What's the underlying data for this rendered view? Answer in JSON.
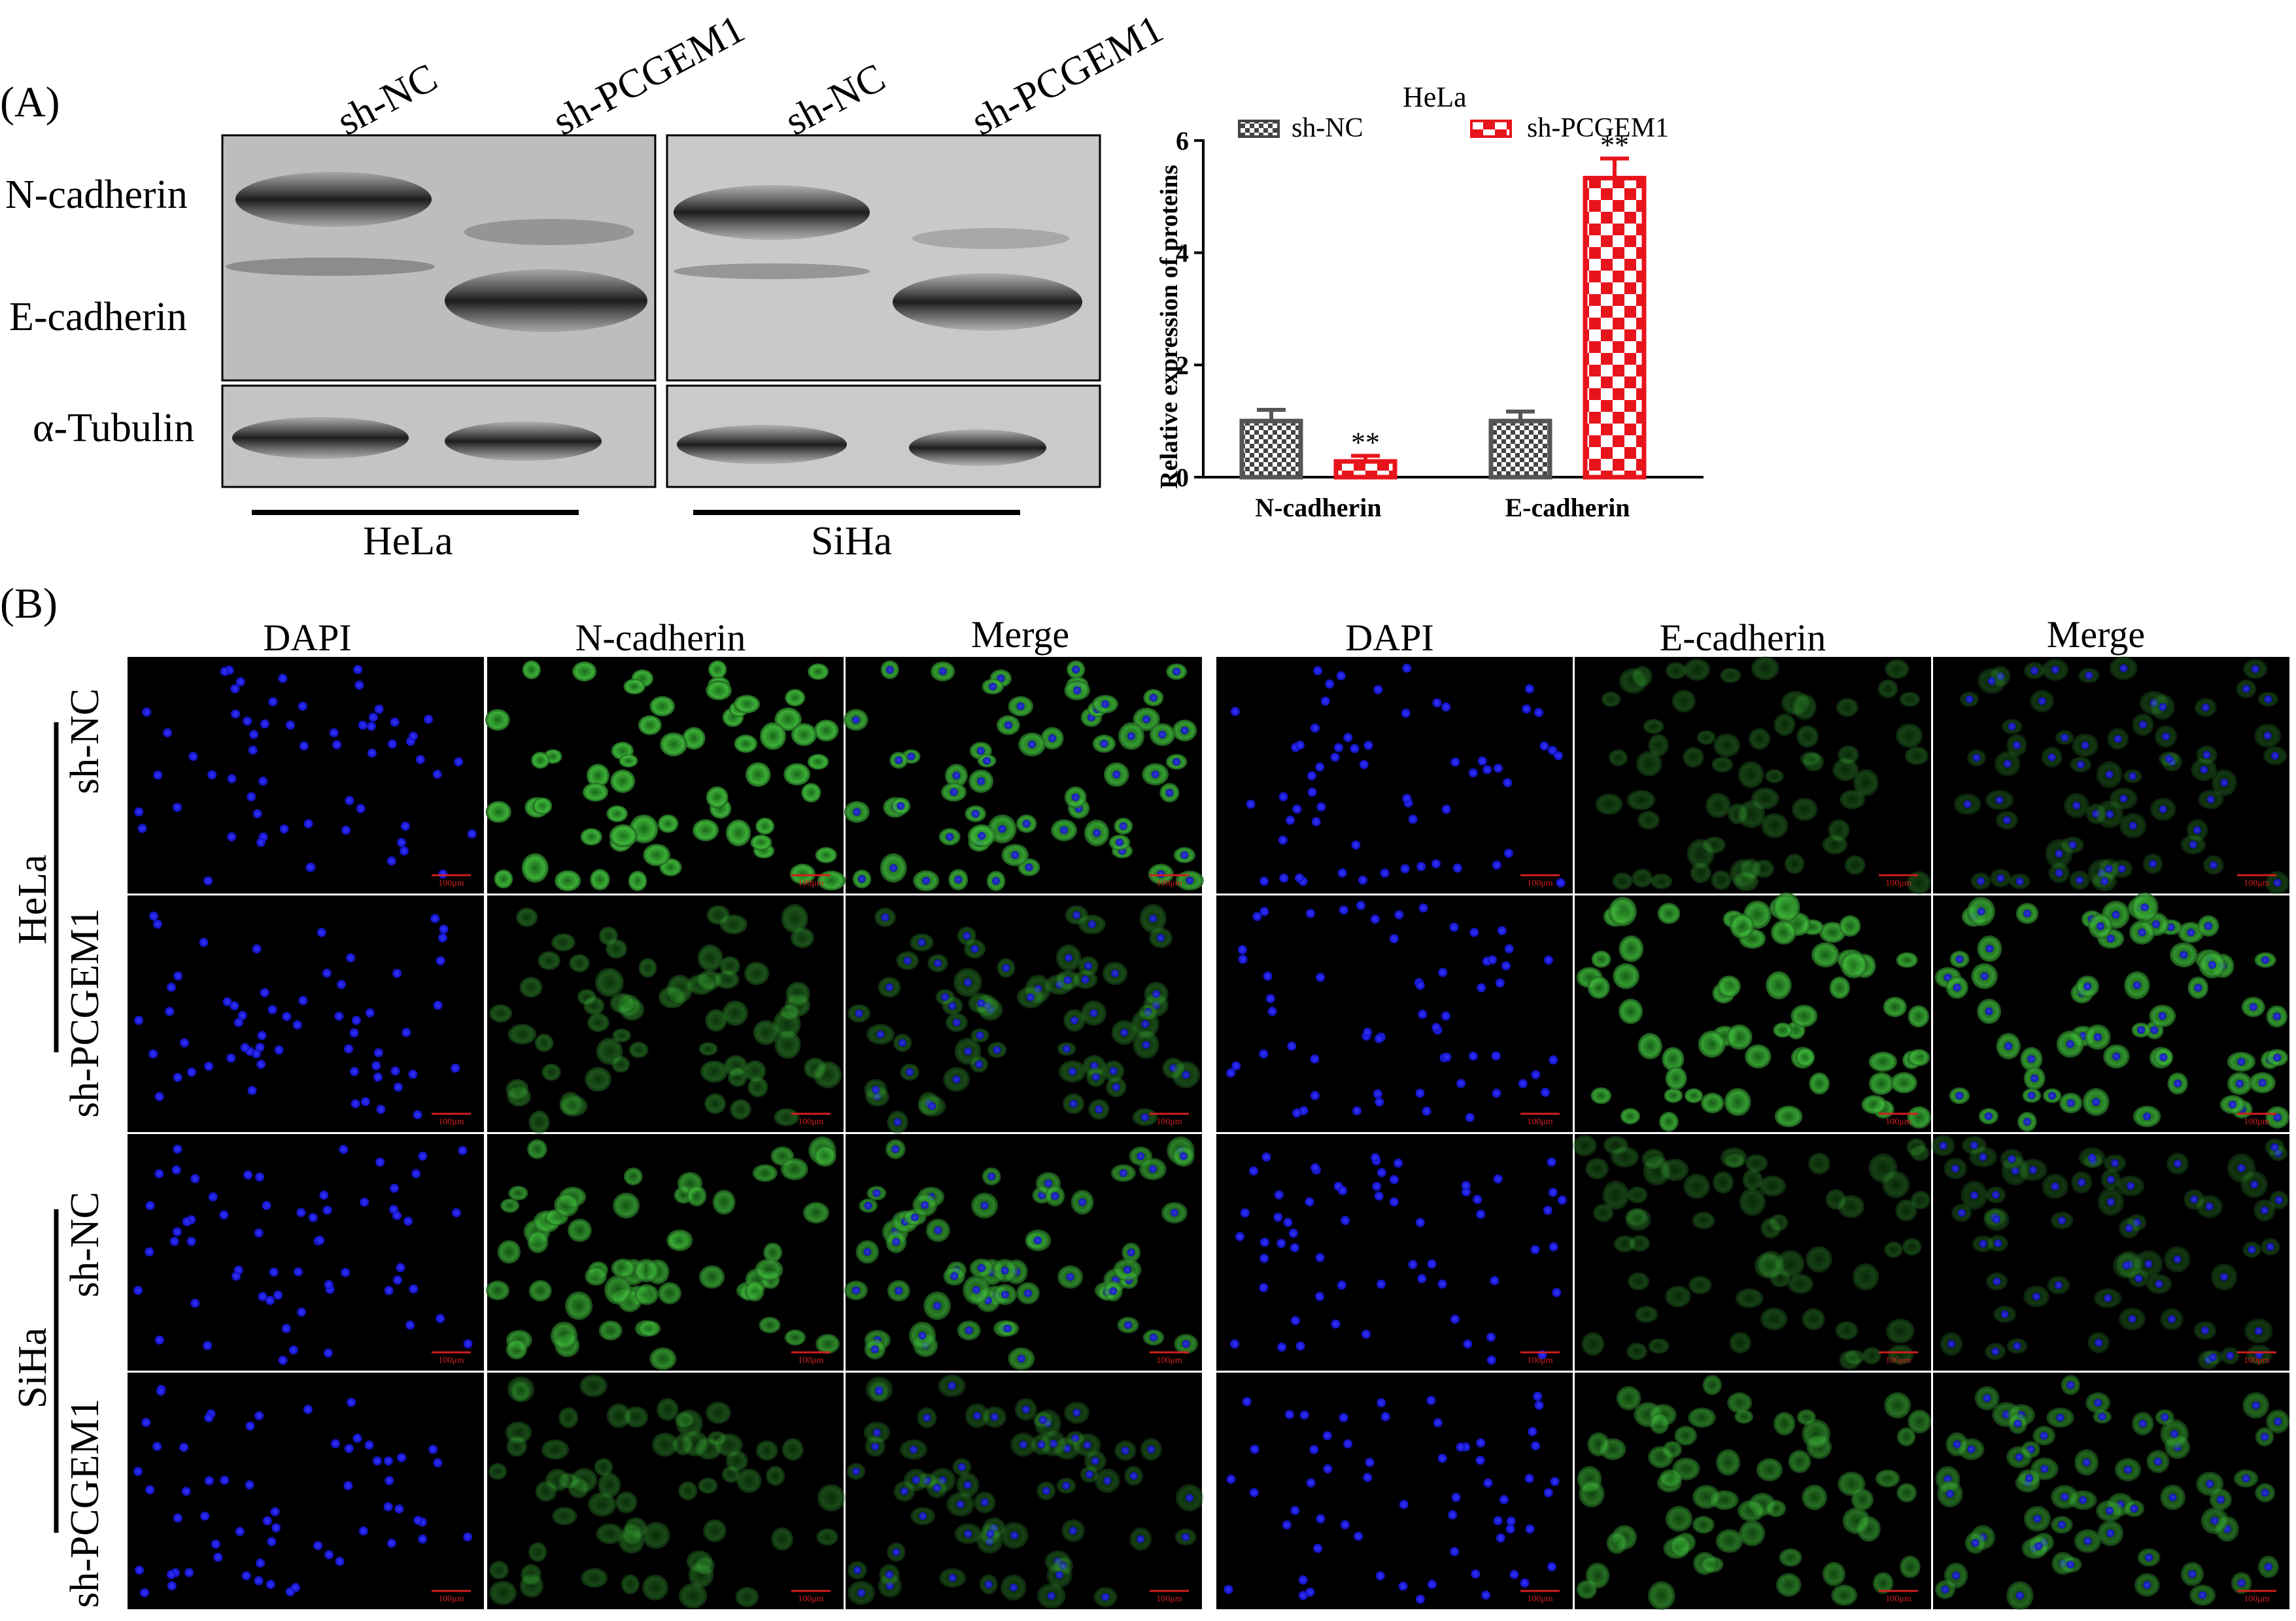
{
  "panel_a": {
    "label": "(A)",
    "lane_labels": [
      "sh-NC",
      "sh-PCGEM1",
      "sh-NC",
      "sh-PCGEM1"
    ],
    "protein_labels": [
      "N-cadherin",
      "E-cadherin",
      "α-Tubulin"
    ],
    "cell_lines": [
      "HeLa",
      "SiHa"
    ]
  },
  "panel_b": {
    "label": "(B)",
    "column_headers": [
      "DAPI",
      "N-cadherin",
      "Merge",
      "DAPI",
      "E-cadherin",
      "Merge"
    ],
    "cell_lines": [
      "HeLa",
      "SiHa"
    ],
    "row_labels": [
      "sh-NC",
      "sh-PCGEM1",
      "sh-NC",
      "sh-PCGEM1"
    ],
    "scale_bar": "100μm",
    "channel_colors": {
      "dapi": "#1f1fd8",
      "green": "#3fb83a",
      "background": "#000000"
    }
  },
  "chart_data": {
    "type": "bar",
    "title": "HeLa",
    "ylabel": "Relative expression of proteins",
    "xlabel": "",
    "categories": [
      "N-cadherin",
      "E-cadherin"
    ],
    "ylim": [
      0,
      6
    ],
    "yticks": [
      "0",
      "2",
      "4",
      "6"
    ],
    "series": [
      {
        "name": "sh-NC",
        "values": [
          1.0,
          1.0
        ],
        "errors": [
          0.2,
          0.17
        ],
        "color": "#555555",
        "pattern": "checker-small"
      },
      {
        "name": "sh-PCGEM1",
        "values": [
          0.28,
          5.33
        ],
        "errors": [
          0.1,
          0.35
        ],
        "color": "#e8141c",
        "pattern": "checker-large"
      }
    ],
    "annotations": [
      "**",
      "**"
    ],
    "legend": "top"
  }
}
